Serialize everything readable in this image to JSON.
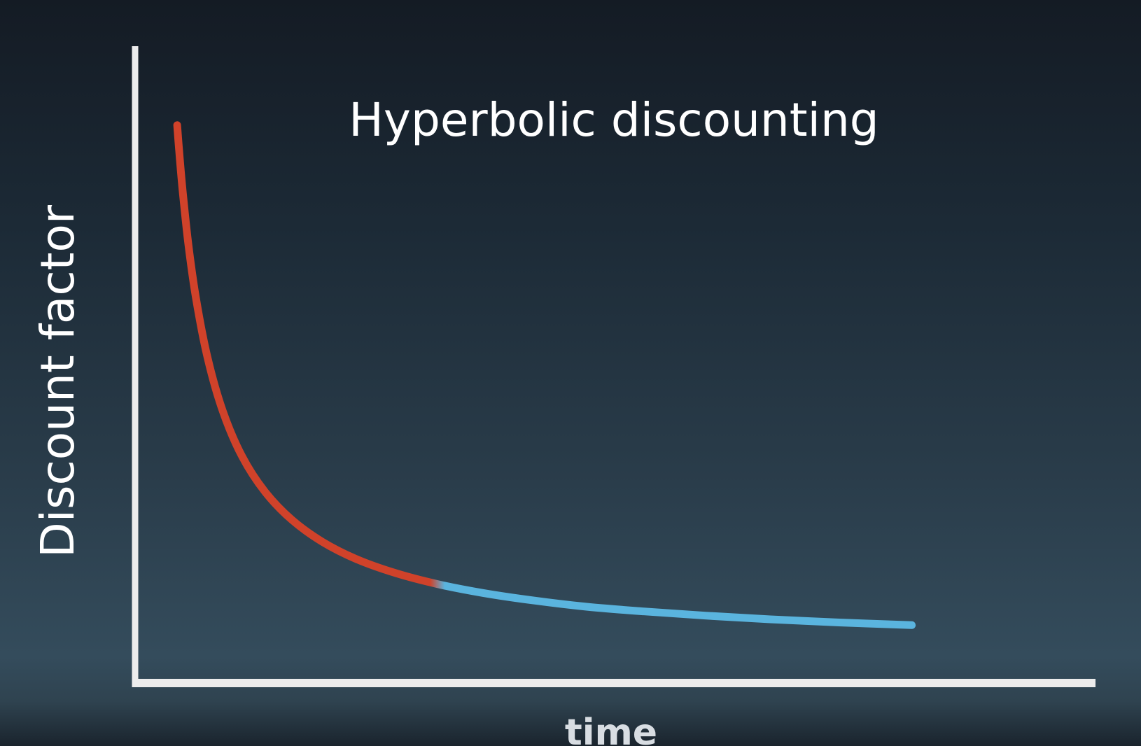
{
  "chart_data": {
    "type": "line",
    "title": "Hyperbolic discounting",
    "xlabel": "time",
    "ylabel": "Discount factor",
    "grid": false,
    "legend": "none",
    "series": [
      {
        "color_near": "#d0422a",
        "color_far": "#5ab4de",
        "x": [
          0.0,
          0.05,
          0.15,
          0.3,
          0.5,
          0.8,
          1.2,
          1.7,
          2.3,
          3.0,
          3.8,
          4.7,
          5.7,
          6.8,
          8.0,
          9.3,
          10.7,
          12.2,
          13.8,
          15.5,
          17.3,
          19.2
        ],
        "y": [
          1.0,
          0.952,
          0.87,
          0.769,
          0.667,
          0.556,
          0.455,
          0.37,
          0.303,
          0.25,
          0.208,
          0.175,
          0.149,
          0.128,
          0.111,
          0.097,
          0.085,
          0.076,
          0.068,
          0.061,
          0.055,
          0.05
        ]
      }
    ],
    "color_split_x": 6.8,
    "xlim": [
      -1.1,
      24.0
    ],
    "ylim": [
      -0.06,
      1.15
    ]
  }
}
